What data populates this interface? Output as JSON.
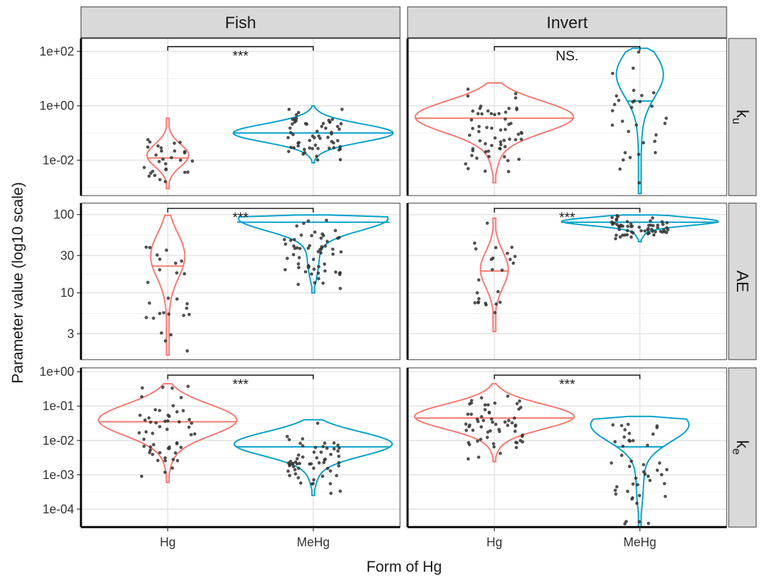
{
  "chart_data": {
    "type": "violin",
    "xlabel": "Form of Hg",
    "ylabel": "Parameter value (log10 scale)",
    "columns": [
      "Fish",
      "Invert"
    ],
    "rows": [
      {
        "key": "ku",
        "label": "k",
        "sub": "u"
      },
      {
        "key": "AE",
        "label": "AE",
        "sub": ""
      },
      {
        "key": "ke",
        "label": "k",
        "sub": "e"
      }
    ],
    "categories": [
      "Hg",
      "MeHg"
    ],
    "colors": {
      "Hg": "#f8766d",
      "MeHg": "#00a0c8",
      "points": "#333333",
      "bracket": "#1a1a1a"
    },
    "y_scale": "log10",
    "rows_axes": {
      "ku": {
        "ylim": [
          0.0005,
          300
        ],
        "ticks": [
          0.01,
          1,
          100
        ],
        "tick_labels": [
          "1e-02",
          "1e+00",
          "1e+02"
        ]
      },
      "AE": {
        "ylim": [
          1.4,
          140
        ],
        "ticks": [
          3,
          10,
          30,
          100
        ],
        "tick_labels": [
          "3",
          "10",
          "30",
          "100"
        ]
      },
      "ke": {
        "ylim": [
          3e-05,
          1.3
        ],
        "ticks": [
          0.0001,
          0.001,
          0.01,
          0.1,
          1
        ],
        "tick_labels": [
          "1e-04",
          "1e-03",
          "1e-02",
          "1e-01",
          "1e+00"
        ]
      }
    },
    "panels": [
      {
        "column": "Fish",
        "row": "ku",
        "significance": "***",
        "sig_y": 150,
        "groups": [
          {
            "category": "Hg",
            "min": 0.0009,
            "max": 0.35,
            "median": 0.012,
            "mode": 0.015,
            "width": 0.12
          },
          {
            "category": "MeHg",
            "min": 0.008,
            "max": 1.0,
            "median": 0.1,
            "mode": 0.1,
            "width": 0.46
          }
        ]
      },
      {
        "column": "Invert",
        "row": "ku",
        "significance": "NS.",
        "sig_y": 150,
        "groups": [
          {
            "category": "Hg",
            "min": 0.0015,
            "max": 7.0,
            "median": 0.35,
            "mode": 0.4,
            "width": 0.46
          },
          {
            "category": "MeHg",
            "min": 0.0006,
            "max": 130,
            "median": 1.5,
            "mode": 15,
            "width": 0.14
          }
        ]
      },
      {
        "column": "Fish",
        "row": "AE",
        "significance": "***",
        "sig_y": 120,
        "groups": [
          {
            "category": "Hg",
            "min": 1.6,
            "max": 98,
            "median": 22,
            "mode": 30,
            "width": 0.1
          },
          {
            "category": "MeHg",
            "min": 10,
            "max": 99,
            "median": 80,
            "mode": 90,
            "width": 0.46
          }
        ]
      },
      {
        "column": "Invert",
        "row": "AE",
        "significance": "***",
        "sig_y": 120,
        "groups": [
          {
            "category": "Hg",
            "min": 3.2,
            "max": 90,
            "median": 19,
            "mode": 20,
            "width": 0.08
          },
          {
            "category": "MeHg",
            "min": 45,
            "max": 99,
            "median": 80,
            "mode": 82,
            "width": 0.46
          }
        ]
      },
      {
        "column": "Fish",
        "row": "ke",
        "significance": "***",
        "sig_y": 0.8,
        "groups": [
          {
            "category": "Hg",
            "min": 0.0006,
            "max": 0.45,
            "median": 0.035,
            "mode": 0.04,
            "width": 0.4
          },
          {
            "category": "MeHg",
            "min": 0.00025,
            "max": 0.04,
            "median": 0.0065,
            "mode": 0.008,
            "width": 0.46
          }
        ]
      },
      {
        "column": "Invert",
        "row": "ke",
        "significance": "***",
        "sig_y": 0.8,
        "groups": [
          {
            "category": "Hg",
            "min": 0.0024,
            "max": 0.45,
            "median": 0.045,
            "mode": 0.05,
            "width": 0.46
          },
          {
            "category": "MeHg",
            "min": 3e-05,
            "max": 0.05,
            "median": 0.0065,
            "mode": 0.03,
            "width": 0.3
          }
        ]
      }
    ]
  }
}
